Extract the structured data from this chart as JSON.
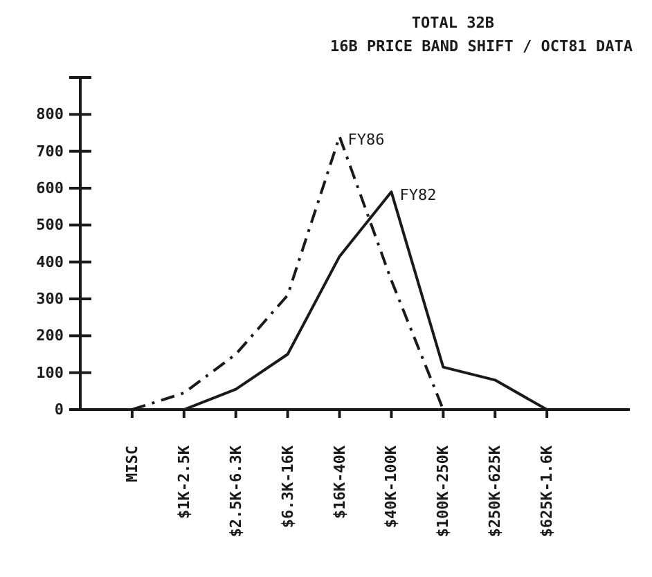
{
  "chart_data": {
    "type": "line",
    "title": "TOTAL 32B",
    "subtitle": "16B PRICE BAND SHIFT / OCT81 DATA",
    "categories": [
      "MISC",
      "$1K-2.5K",
      "$2.5K-6.3K",
      "$6.3K-16K",
      "$16K-40K",
      "$40K-100K",
      "$100K-250K",
      "$250K-625K",
      "$625K-1.6K"
    ],
    "series": [
      {
        "name": "FY86",
        "color": "#1a1a1a",
        "line_style": "dashed",
        "values": [
          0,
          45,
          150,
          310,
          740,
          350,
          0,
          null,
          null
        ]
      },
      {
        "name": "FY82",
        "color": "#1a1a1a",
        "line_style": "solid",
        "values": [
          null,
          0,
          55,
          150,
          415,
          590,
          115,
          80,
          0
        ]
      }
    ],
    "ylim": [
      0,
      900
    ],
    "yticks": [
      0,
      100,
      200,
      300,
      400,
      500,
      600,
      700,
      800,
      {
        "value": 900,
        "label": null
      }
    ],
    "grid": false,
    "legend": false,
    "marker": "none"
  }
}
